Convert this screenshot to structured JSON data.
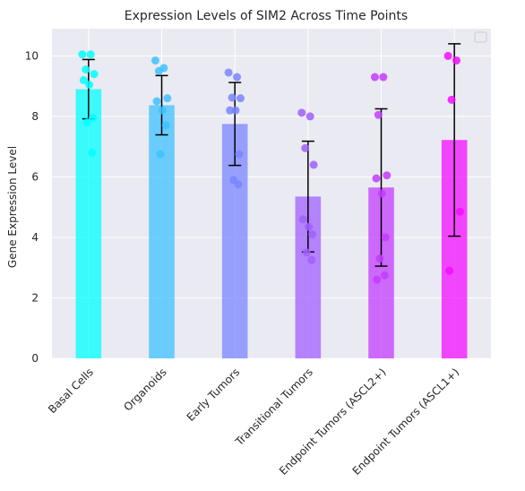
{
  "chart_data": {
    "type": "bar",
    "title": "Expression Levels of SIM2 Across Time Points",
    "xlabel": "",
    "ylabel": "Gene Expression Level",
    "ylim": [
      0,
      10.9
    ],
    "yticks": [
      0,
      2,
      4,
      6,
      8,
      10
    ],
    "grid": true,
    "legend": "top-right",
    "background": "#eaeaf2",
    "categories": [
      "Basal Cells",
      "Organoids",
      "Early Tumors",
      "Transitional Tumors",
      "Endpoint Tumors (ASCL2+)",
      "Endpoint Tumors (ASCL1+)"
    ],
    "values": [
      8.9,
      8.37,
      7.75,
      5.35,
      5.65,
      7.22
    ],
    "errors": [
      0.98,
      0.98,
      1.37,
      1.83,
      2.6,
      3.18
    ],
    "colors": [
      "#00ffff",
      "#3dc2ff",
      "#7a85ff",
      "#a05fff",
      "#c33cff",
      "#f20dff"
    ],
    "points": [
      [
        10.05,
        10.05,
        9.55,
        9.4,
        9.2,
        9.05,
        7.95,
        7.8,
        6.8
      ],
      [
        9.85,
        9.6,
        9.5,
        8.6,
        8.5,
        8.2,
        7.7,
        6.75
      ],
      [
        9.45,
        9.3,
        8.62,
        8.6,
        8.2,
        8.2,
        6.75,
        5.9,
        5.75
      ],
      [
        8.12,
        8.0,
        6.95,
        6.4,
        4.6,
        4.35,
        4.1,
        3.5,
        3.25
      ],
      [
        9.3,
        9.3,
        8.05,
        6.05,
        5.95,
        5.45,
        4.0,
        3.3,
        2.75,
        2.6
      ],
      [
        10.0,
        9.85,
        8.55,
        4.85,
        2.9
      ]
    ]
  }
}
